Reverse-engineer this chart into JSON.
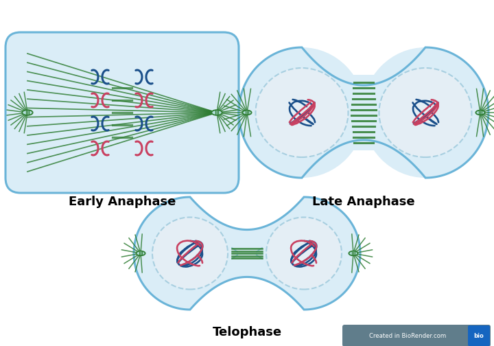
{
  "background_color": "#ffffff",
  "cell_fill": "#daedf7",
  "cell_edge": "#6ab4d8",
  "nucleus_fill": "#e4eef5",
  "nucleus_edge": "#a8cfe0",
  "spindle_color": "#2e7d32",
  "chromosome_blue": "#1a4f8a",
  "chromosome_pink": "#c94060",
  "centriole_fill": "#b2dfdb",
  "centriole_edge": "#2e7d32",
  "labels": {
    "early_anaphase": "Early Anaphase",
    "late_anaphase": "Late Anaphase",
    "telophase": "Telophase"
  },
  "label_fontsize": 13,
  "biorender_bg": "#607d8b",
  "biorender_blue": "#1565c0"
}
